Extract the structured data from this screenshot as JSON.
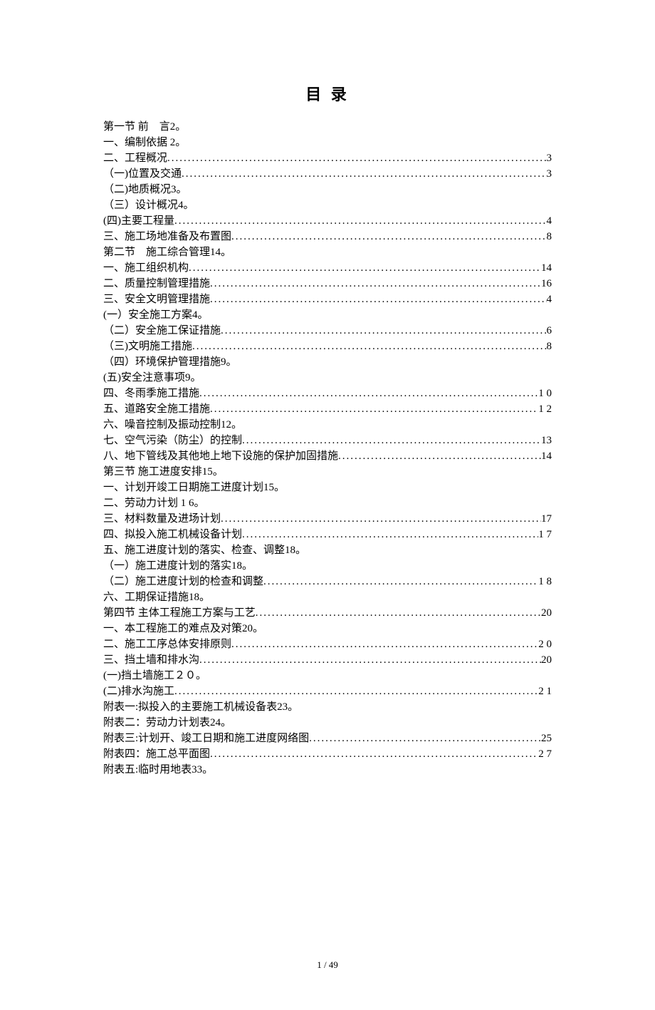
{
  "title": "目 录",
  "footer": "1 / 49",
  "entries": [
    {
      "label": "第一节 前　言2。",
      "page": "",
      "dotted": false
    },
    {
      "label": "一、编制依据 2。",
      "page": "",
      "dotted": false
    },
    {
      "label": "二、工程概况",
      "page": "3",
      "dotted": true
    },
    {
      "label": "（一)位置及交通",
      "page": "3",
      "dotted": true
    },
    {
      "label": "（二)地质概况3。",
      "page": "",
      "dotted": false
    },
    {
      "label": "（三）设计概况4。",
      "page": "",
      "dotted": false
    },
    {
      "label": "(四)主要工程量",
      "page": "4",
      "dotted": true
    },
    {
      "label": "三、施工场地准备及布置图",
      "page": "8",
      "dotted": true
    },
    {
      "label": "第二节　施工综合管理14。",
      "page": "",
      "dotted": false
    },
    {
      "label": "一、施工组织机构",
      "page": "14",
      "dotted": true
    },
    {
      "label": "二、质量控制管理措施",
      "page": "16",
      "dotted": true
    },
    {
      "label": "三、安全文明管理措施",
      "page": "4",
      "dotted": true
    },
    {
      "label": "(一）安全施工方案4。",
      "page": "",
      "dotted": false
    },
    {
      "label": "（二）安全施工保证措施",
      "page": "6",
      "dotted": true
    },
    {
      "label": "（三)文明施工措施",
      "page": " 8",
      "dotted": true
    },
    {
      "label": "（四）环境保护管理措施9。",
      "page": "",
      "dotted": false
    },
    {
      "label": "(五)安全注意事项9。",
      "page": "",
      "dotted": false
    },
    {
      "label": "四、冬雨季施工措施",
      "page": " 1  0",
      "dotted": true
    },
    {
      "label": "五、道路安全施工措施",
      "page": "1 2",
      "dotted": true
    },
    {
      "label": "六、噪音控制及振动控制12。",
      "page": "",
      "dotted": false
    },
    {
      "label": "七、空气污染（防尘）的控制",
      "page": "13",
      "dotted": true
    },
    {
      "label": "八、地下管线及其他地上地下设施的保护加固措施",
      "page": "14",
      "dotted": true
    },
    {
      "label": "第三节 施工进度安排15。",
      "page": "",
      "dotted": false
    },
    {
      "label": "一、计划开竣工日期施工进度计划15。",
      "page": "",
      "dotted": false
    },
    {
      "label": "二、劳动力计划 1 6。",
      "page": "",
      "dotted": false
    },
    {
      "label": "三、材料数量及进场计划",
      "page": "17",
      "dotted": true
    },
    {
      "label": "四、拟投入施工机械设备计划",
      "page": " 1 7",
      "dotted": true
    },
    {
      "label": "五、施工进度计划的落实、检查、调整18。",
      "page": "",
      "dotted": false
    },
    {
      "label": "（一）施工进度计划的落实18。",
      "page": "",
      "dotted": false
    },
    {
      "label": "（二）施工进度计划的检查和调整",
      "page": "1 8",
      "dotted": true
    },
    {
      "label": "六、工期保证措施18。",
      "page": "",
      "dotted": false
    },
    {
      "label": "第四节 主体工程施工方案与工艺",
      "page": "20",
      "dotted": true
    },
    {
      "label": "一、本工程施工的难点及对策20。",
      "page": "",
      "dotted": false
    },
    {
      "label": "二、施工工序总体安排原则",
      "page": "2 0",
      "dotted": true
    },
    {
      "label": "三、挡土墙和排水沟",
      "page": "20",
      "dotted": true
    },
    {
      "label": "(一)挡土墙施工２０。",
      "page": "",
      "dotted": false
    },
    {
      "label": "(二)排水沟施工",
      "page": "2 1",
      "dotted": true
    },
    {
      "label": "附表一:拟投入的主要施工机械设备表23。",
      "page": "",
      "dotted": false
    },
    {
      "label": "附表二：劳动力计划表24。",
      "page": "",
      "dotted": false
    },
    {
      "label": "附表三:计划开、竣工日期和施工进度网络图",
      "page": "25",
      "dotted": true
    },
    {
      "label": "附表四：施工总平面图",
      "page": " 2 7",
      "dotted": true
    },
    {
      "label": "附表五:临时用地表33。",
      "page": "",
      "dotted": false
    }
  ]
}
